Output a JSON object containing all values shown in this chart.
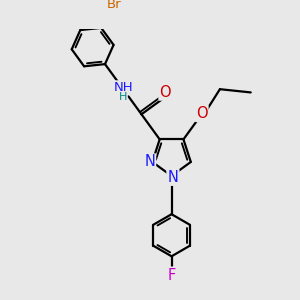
{
  "bg_color": "#e8e8e8",
  "bond_color": "#000000",
  "bond_width": 1.6,
  "atom_colors": {
    "C": "#000000",
    "N": "#1a1aff",
    "O": "#cc0000",
    "Br": "#cc6600",
    "F": "#cc00cc",
    "H": "#008888"
  },
  "font_size": 9.5,
  "fig_size": [
    3.0,
    3.0
  ],
  "dpi": 100
}
